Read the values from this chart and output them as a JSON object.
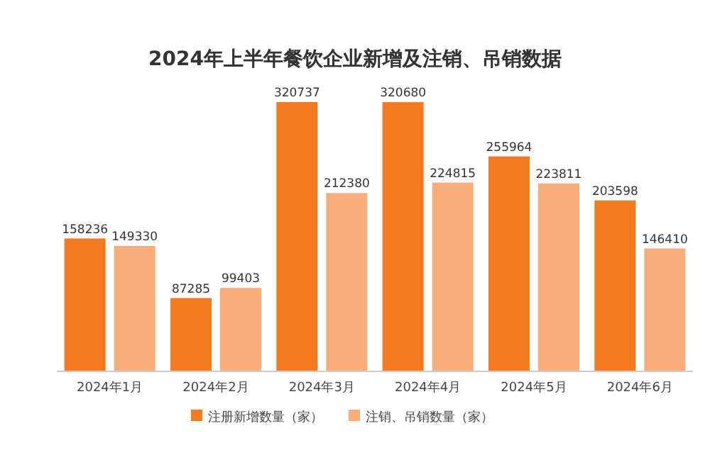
{
  "chart_data": {
    "type": "bar",
    "title": "2024年上半年餐饮企业新增及注销、吊销数据",
    "categories": [
      "2024年1月",
      "2024年2月",
      "2024年3月",
      "2024年4月",
      "2024年5月",
      "2024年6月"
    ],
    "series": [
      {
        "name": "注册新增数量（家）",
        "color": "#f47a1f",
        "values": [
          158236,
          87285,
          320737,
          320680,
          255964,
          203598
        ]
      },
      {
        "name": "注销、吊销数量（家）",
        "color": "#f9ad7c",
        "values": [
          149330,
          99403,
          212380,
          224815,
          223811,
          146410
        ]
      }
    ],
    "data_labels": true,
    "legend": "bottom"
  }
}
